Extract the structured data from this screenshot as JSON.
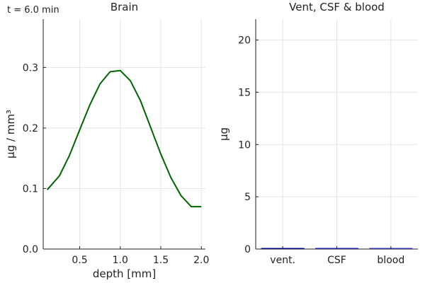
{
  "annotation": "t = 6.0 min",
  "chart_data": [
    {
      "type": "line",
      "title": "Brain",
      "xlabel": "depth [mm]",
      "ylabel": "µg / mm³",
      "xlim": [
        0.05,
        2.05
      ],
      "ylim": [
        0.0,
        0.38
      ],
      "xticks": [
        0.5,
        1.0,
        1.5,
        2.0
      ],
      "xtick_labels": [
        "0.5",
        "1.0",
        "1.5",
        "2.0"
      ],
      "yticks": [
        0.0,
        0.1,
        0.2,
        0.3
      ],
      "ytick_labels": [
        "0.0",
        "0.1",
        "0.2",
        "0.3"
      ],
      "grid": true,
      "series": [
        {
          "color": "#006400",
          "x": [
            0.1,
            0.25,
            0.375,
            0.5,
            0.625,
            0.75,
            0.875,
            1.0,
            1.125,
            1.25,
            1.375,
            1.5,
            1.625,
            1.75,
            1.875,
            2.0
          ],
          "y": [
            0.098,
            0.121,
            0.155,
            0.197,
            0.238,
            0.273,
            0.293,
            0.295,
            0.278,
            0.245,
            0.201,
            0.157,
            0.118,
            0.088,
            0.07,
            0.07
          ]
        }
      ]
    },
    {
      "type": "bar",
      "title": "Vent, CSF & blood",
      "xlabel": "",
      "ylabel": "µg",
      "ylim": [
        0,
        22
      ],
      "yticks": [
        0,
        5,
        10,
        15,
        20
      ],
      "ytick_labels": [
        "0",
        "5",
        "10",
        "15",
        "20"
      ],
      "categories": [
        "vent.",
        "CSF",
        "blood"
      ],
      "values": [
        0.1,
        0.05,
        0.0
      ],
      "colors": [
        "#00008b",
        "#1f1fa8",
        "#3030b0"
      ],
      "grid": true
    }
  ]
}
